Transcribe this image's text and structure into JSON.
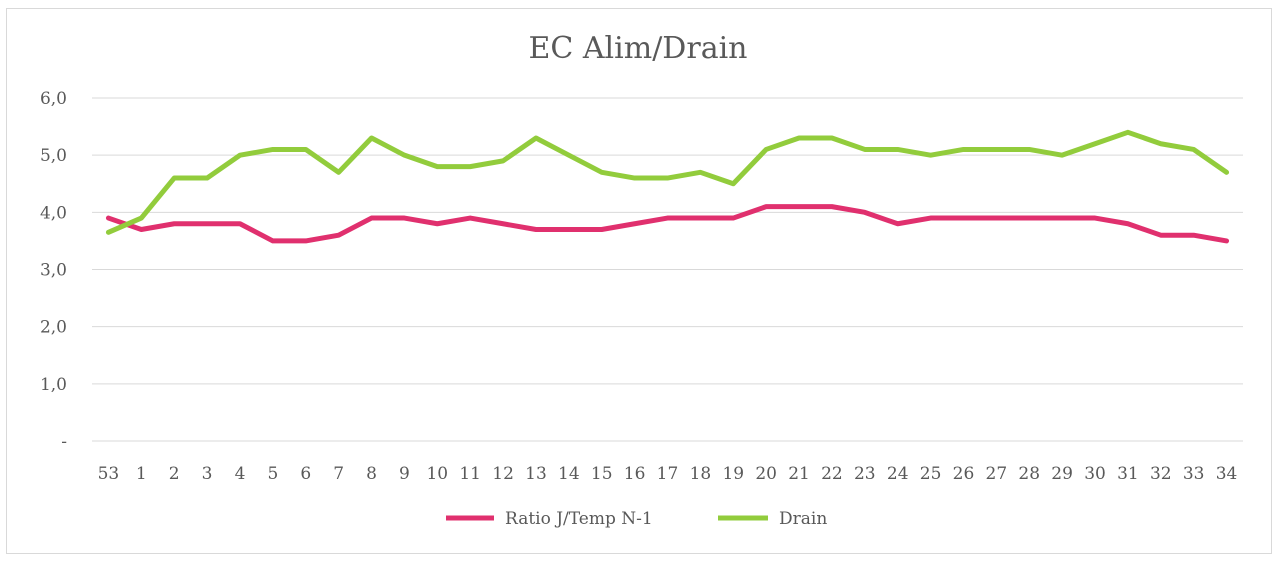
{
  "chart_data": {
    "type": "line",
    "title": "EC Alim/Drain",
    "xlabel": "",
    "ylabel": "",
    "ylim": [
      0,
      6
    ],
    "yticks": [
      {
        "value": 0,
        "label": "-"
      },
      {
        "value": 1,
        "label": "1,0"
      },
      {
        "value": 2,
        "label": "2,0"
      },
      {
        "value": 3,
        "label": "3,0"
      },
      {
        "value": 4,
        "label": "4,0"
      },
      {
        "value": 5,
        "label": "5,0"
      },
      {
        "value": 6,
        "label": "6,0"
      }
    ],
    "grid": true,
    "legend_position": "bottom",
    "categories": [
      "53",
      "1",
      "2",
      "3",
      "4",
      "5",
      "6",
      "7",
      "8",
      "9",
      "10",
      "11",
      "12",
      "13",
      "14",
      "15",
      "16",
      "17",
      "18",
      "19",
      "20",
      "21",
      "22",
      "23",
      "24",
      "25",
      "26",
      "27",
      "28",
      "29",
      "30",
      "31",
      "32",
      "33",
      "34"
    ],
    "series": [
      {
        "name": "Ratio J/Temp N-1",
        "color": "#e0306e",
        "values": [
          3.9,
          3.7,
          3.8,
          3.8,
          3.8,
          3.5,
          3.5,
          3.6,
          3.9,
          3.9,
          3.8,
          3.9,
          3.8,
          3.7,
          3.7,
          3.7,
          3.8,
          3.9,
          3.9,
          3.9,
          4.1,
          4.1,
          4.1,
          4.0,
          3.8,
          3.9,
          3.9,
          3.9,
          3.9,
          3.9,
          3.9,
          3.8,
          3.6,
          3.6,
          3.5
        ]
      },
      {
        "name": "Drain",
        "color": "#92cc3c",
        "values": [
          3.65,
          3.9,
          4.6,
          4.6,
          5.0,
          5.1,
          5.1,
          4.7,
          5.3,
          5.0,
          4.8,
          4.8,
          4.9,
          5.3,
          5.0,
          4.7,
          4.6,
          4.6,
          4.7,
          4.5,
          5.1,
          5.3,
          5.3,
          5.1,
          5.1,
          5.0,
          5.1,
          5.1,
          5.1,
          5.0,
          5.2,
          5.4,
          5.2,
          5.1,
          4.7
        ]
      }
    ]
  }
}
